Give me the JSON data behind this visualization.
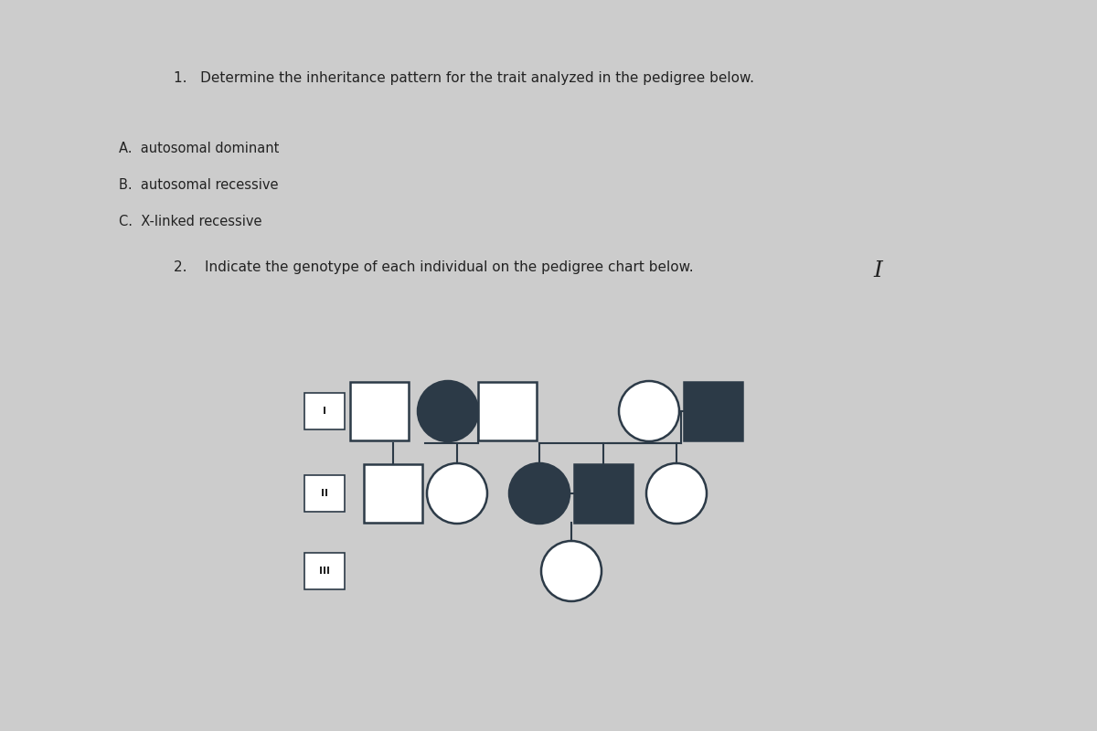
{
  "bg_color": "#cccccc",
  "text_color": "#222222",
  "filled_color": "#2c3a47",
  "unfilled_color": "white",
  "line_color": "#2c3a47",
  "title1": "1.   Determine the inheritance pattern for the trait analyzed in the pedigree below.",
  "option_A": "A.  autosomal dominant",
  "option_B": "B.  autosomal recessive",
  "option_C": "C.  X-linked recessive",
  "title2": "2.    Indicate the genotype of each individual on the pedigree chart below.",
  "cursor_I": "I",
  "gen_labels": [
    "I",
    "II",
    "III"
  ]
}
